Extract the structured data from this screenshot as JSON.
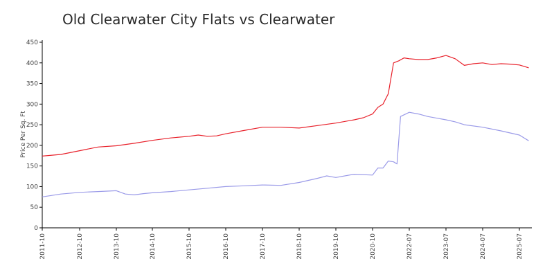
{
  "chart_data": {
    "type": "line",
    "title": "Old Clearwater City Flats vs Clearwater",
    "xlabel": "",
    "ylabel": "Price Per Sq. Ft",
    "ylim": [
      0,
      450
    ],
    "yticks": [
      0,
      50,
      100,
      150,
      200,
      250,
      300,
      350,
      400,
      450
    ],
    "grid": false,
    "x_tick_labels": [
      "2011-10",
      "2012-10",
      "2013-10",
      "2014-10",
      "2015-10",
      "2016-10",
      "2017-10",
      "2018-10",
      "2019-10",
      "2020-10",
      "2022-07",
      "2023-07",
      "2024-07",
      "2025-07"
    ],
    "series": [
      {
        "color": "#e8202a",
        "points": [
          [
            "2011-10",
            174
          ],
          [
            "2012-04",
            178
          ],
          [
            "2012-10",
            187
          ],
          [
            "2013-04",
            196
          ],
          [
            "2013-10",
            199
          ],
          [
            "2014-04",
            205
          ],
          [
            "2014-10",
            212
          ],
          [
            "2015-04",
            218
          ],
          [
            "2015-10",
            222
          ],
          [
            "2016-01",
            225
          ],
          [
            "2016-04",
            222
          ],
          [
            "2016-07",
            223
          ],
          [
            "2016-10",
            228
          ],
          [
            "2017-04",
            236
          ],
          [
            "2017-10",
            244
          ],
          [
            "2018-04",
            244
          ],
          [
            "2018-10",
            242
          ],
          [
            "2019-04",
            248
          ],
          [
            "2019-10",
            254
          ],
          [
            "2020-04",
            262
          ],
          [
            "2020-07",
            267
          ],
          [
            "2020-10",
            276
          ],
          [
            "2021-01",
            292
          ],
          [
            "2021-04",
            300
          ],
          [
            "2021-07",
            325
          ],
          [
            "2021-10",
            400
          ],
          [
            "2022-01",
            405
          ],
          [
            "2022-04",
            412
          ],
          [
            "2022-07",
            410
          ],
          [
            "2022-10",
            408
          ],
          [
            "2023-01",
            408
          ],
          [
            "2023-04",
            412
          ],
          [
            "2023-07",
            418
          ],
          [
            "2023-10",
            410
          ],
          [
            "2024-01",
            394
          ],
          [
            "2024-04",
            398
          ],
          [
            "2024-07",
            400
          ],
          [
            "2024-10",
            396
          ],
          [
            "2025-01",
            398
          ],
          [
            "2025-04",
            397
          ],
          [
            "2025-07",
            395
          ],
          [
            "2025-10",
            388
          ]
        ]
      },
      {
        "color": "#9a9ae8",
        "points": [
          [
            "2011-10",
            75
          ],
          [
            "2012-04",
            82
          ],
          [
            "2012-10",
            86
          ],
          [
            "2013-04",
            88
          ],
          [
            "2013-10",
            90
          ],
          [
            "2014-01",
            82
          ],
          [
            "2014-04",
            80
          ],
          [
            "2014-07",
            83
          ],
          [
            "2014-10",
            85
          ],
          [
            "2015-04",
            88
          ],
          [
            "2015-10",
            92
          ],
          [
            "2016-04",
            96
          ],
          [
            "2016-10",
            100
          ],
          [
            "2017-04",
            102
          ],
          [
            "2017-10",
            104
          ],
          [
            "2018-04",
            103
          ],
          [
            "2018-10",
            110
          ],
          [
            "2019-04",
            120
          ],
          [
            "2019-07",
            126
          ],
          [
            "2019-10",
            122
          ],
          [
            "2020-04",
            130
          ],
          [
            "2020-10",
            128
          ],
          [
            "2021-01",
            145
          ],
          [
            "2021-04",
            145
          ],
          [
            "2021-07",
            162
          ],
          [
            "2021-10",
            160
          ],
          [
            "2021-12",
            155
          ],
          [
            "2022-02",
            270
          ],
          [
            "2022-07",
            280
          ],
          [
            "2022-10",
            276
          ],
          [
            "2023-01",
            270
          ],
          [
            "2023-07",
            262
          ],
          [
            "2023-10",
            257
          ],
          [
            "2024-01",
            250
          ],
          [
            "2024-07",
            244
          ],
          [
            "2025-01",
            235
          ],
          [
            "2025-07",
            225
          ],
          [
            "2025-10",
            211
          ]
        ]
      }
    ]
  }
}
